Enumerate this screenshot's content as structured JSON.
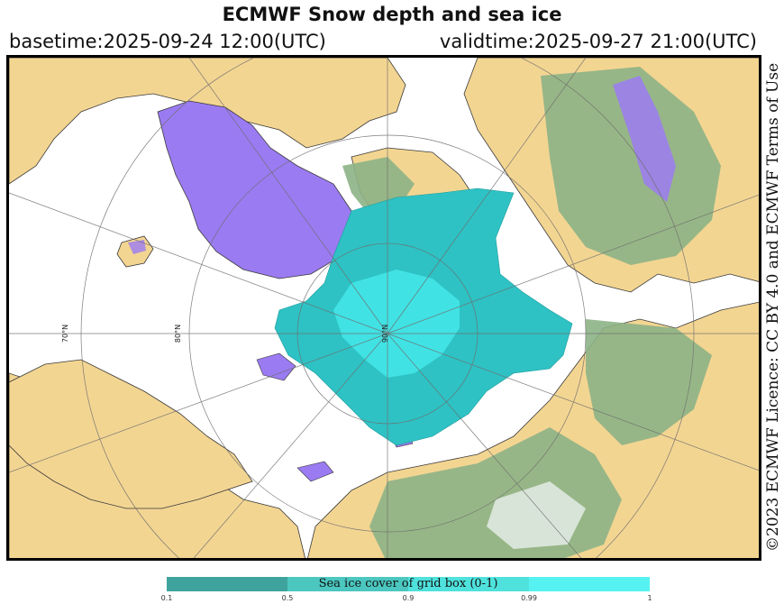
{
  "header": {
    "title": "ECMWF Snow depth and sea ice",
    "basetime": "basetime:2025-09-24 12:00(UTC)",
    "validtime": "validtime:2025-09-27 21:00(UTC)"
  },
  "credit": "©2023 ECMWF Licence: CC BY 4.0 and ECMWF Terms of Use",
  "map": {
    "projection": "polar stereographic (north pole centred)",
    "pole_label": "90°N",
    "latitude_labels": [
      "70°N",
      "80°N"
    ],
    "colors": {
      "land": "#f3d592",
      "snow_free_vegetation": "#8db286",
      "snow": "#9b7bf2",
      "sea_ice": "#2ec2c4",
      "sea_ice_core": "#44e8ea",
      "ocean": "#ffffff",
      "graticule": "#6e6e6e"
    }
  },
  "legend": {
    "label": "Sea ice cover of grid box (0-1)",
    "ticks": [
      "0.1",
      "0.5",
      "0.9",
      "0.99",
      "1"
    ],
    "segment_colors": [
      "#3fa39d",
      "#4bc7c0",
      "#4fe2dd",
      "#56f2f2"
    ]
  }
}
